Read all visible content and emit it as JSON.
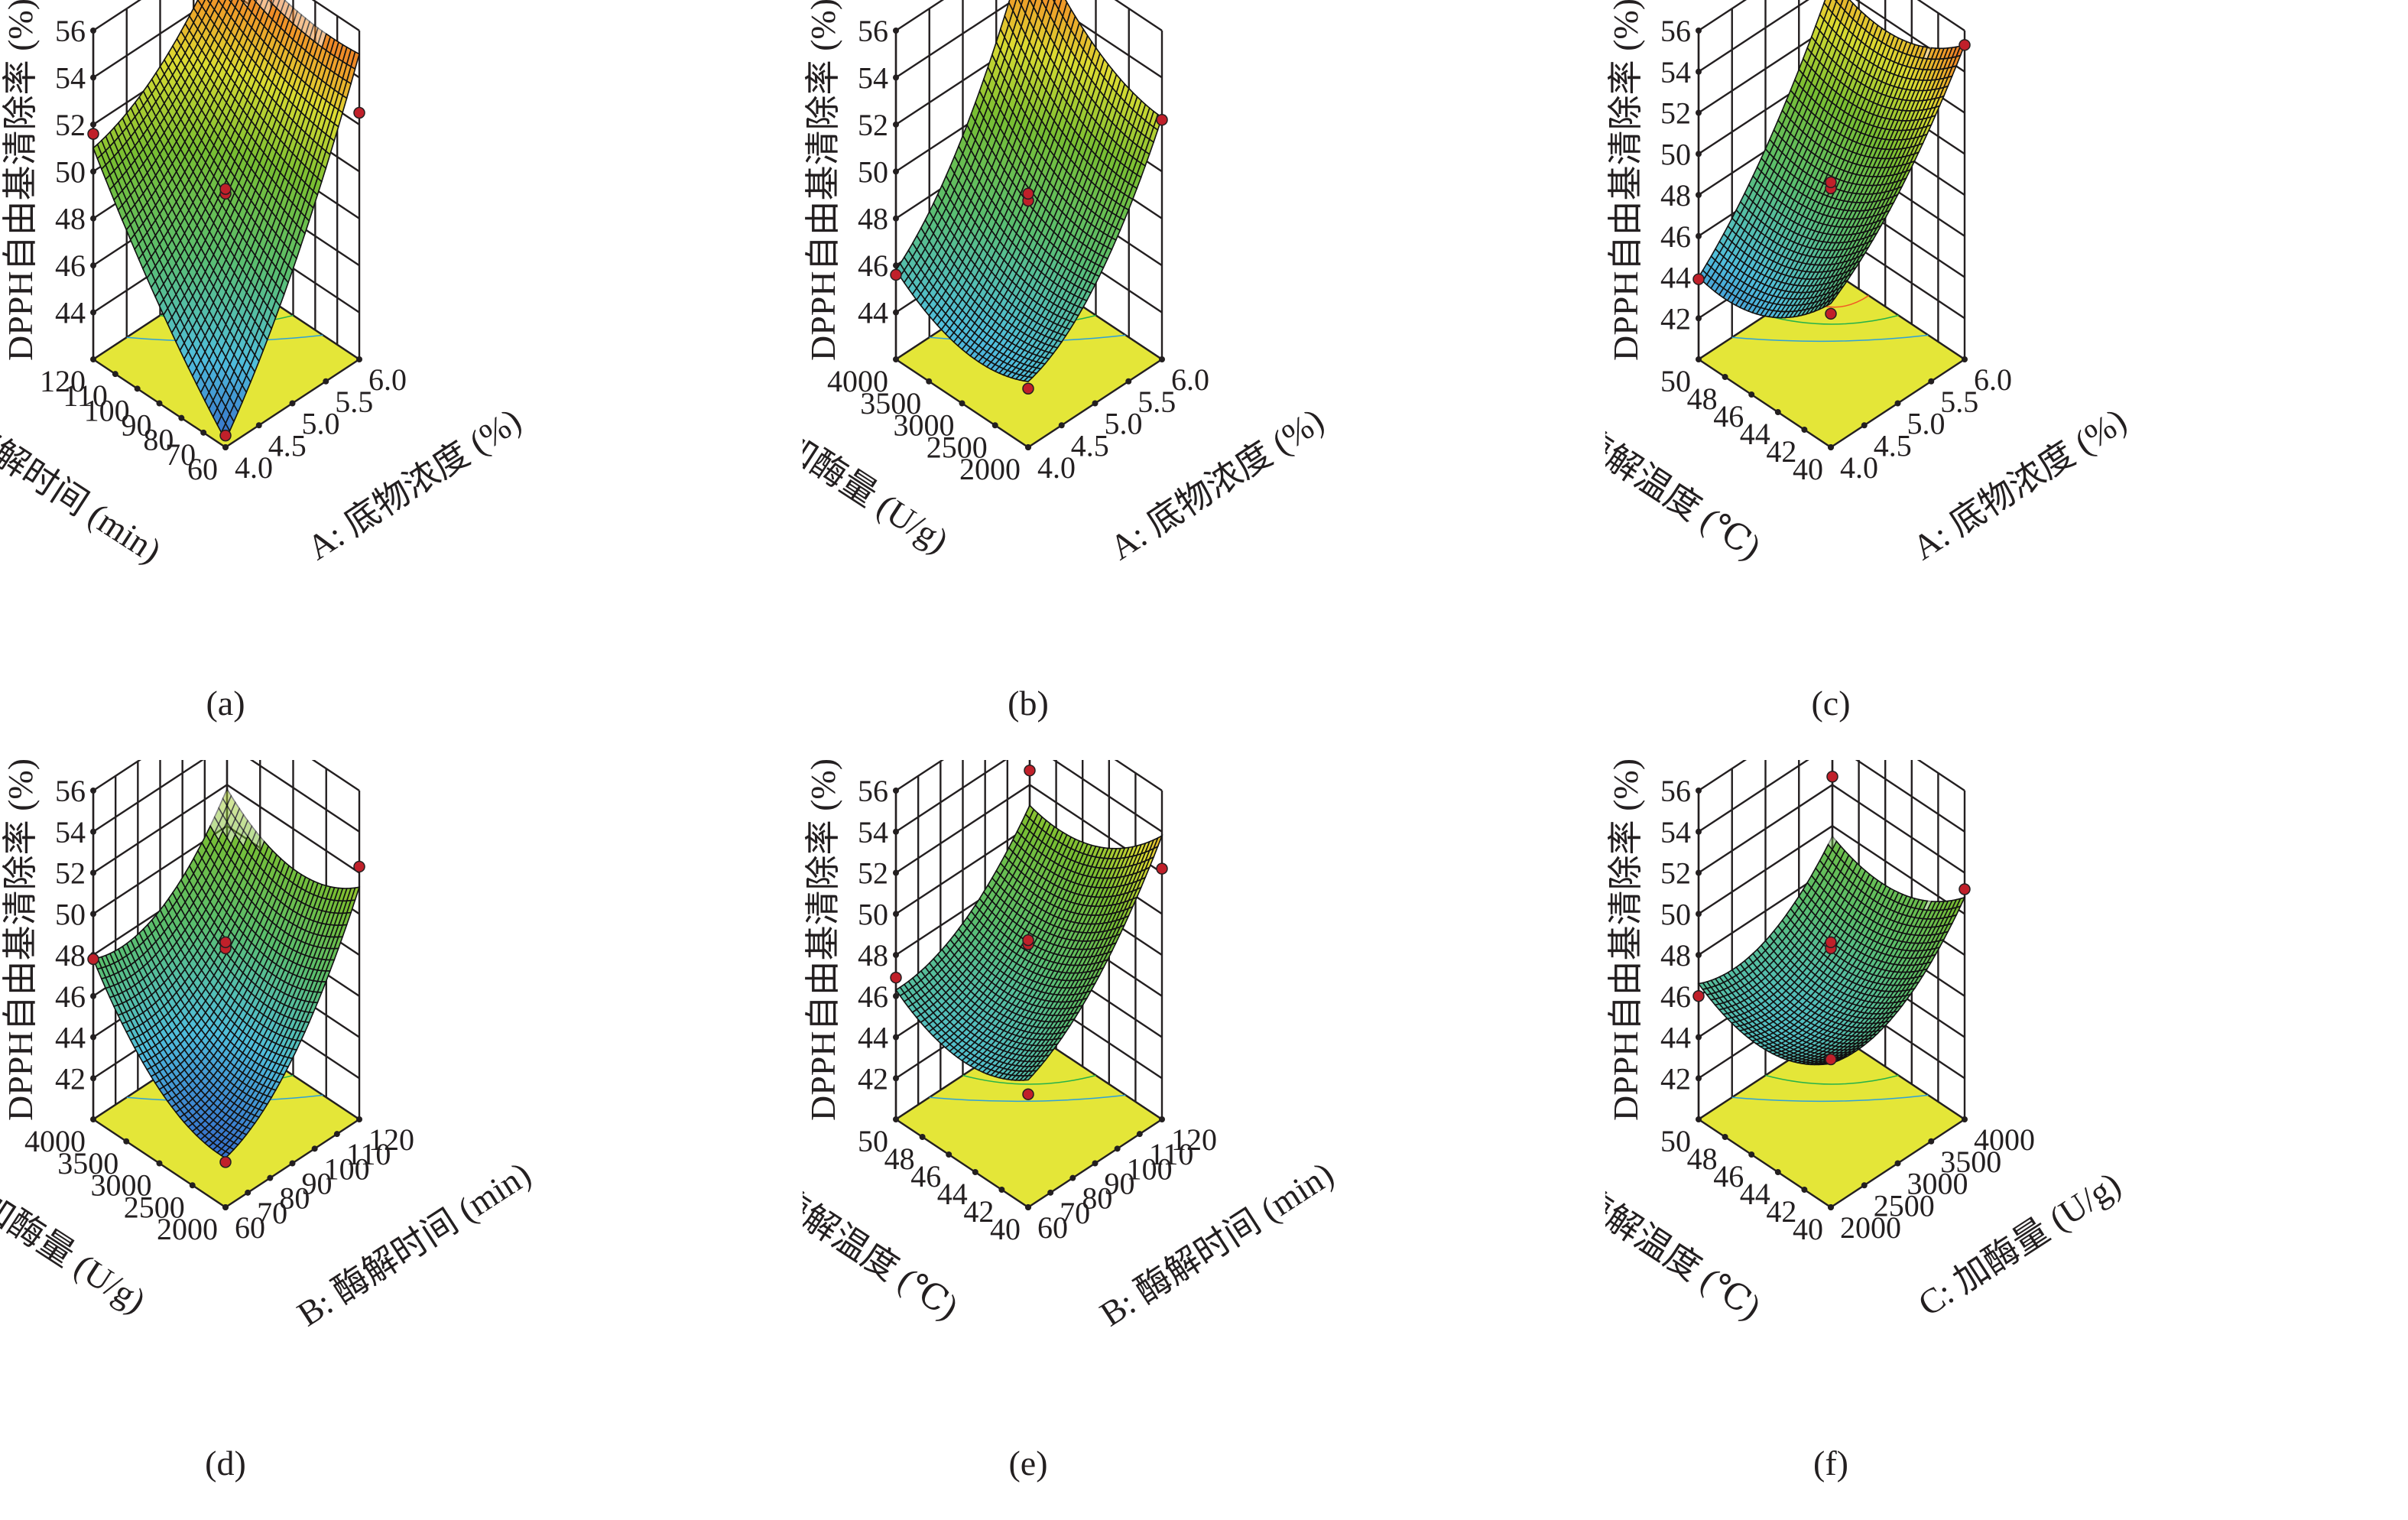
{
  "figure": {
    "panels": [
      "a",
      "b",
      "c",
      "d",
      "e",
      "f"
    ]
  },
  "chart_data": [
    {
      "id": "a",
      "type": "surface3d",
      "caption": "(a)",
      "zlabel": "DPPH自由基清除率 (%)",
      "zlim": [
        42,
        56
      ],
      "zticks": [
        "44",
        "46",
        "48",
        "50",
        "52",
        "54",
        "56"
      ],
      "zmin_tick": 44,
      "x_right": {
        "label": "A: 底物浓度 (%)",
        "range": [
          4.0,
          6.0
        ],
        "ticks": [
          "4.0",
          "4.5",
          "5.0",
          "5.5",
          "6.0"
        ]
      },
      "y_left": {
        "label": "B: 酶解时间 (min)",
        "range": [
          60,
          120
        ],
        "ticks": [
          "60",
          "70",
          "80",
          "90",
          "100",
          "110",
          "120"
        ]
      },
      "corners": {
        "front": 42.3,
        "left": 51.0,
        "right": 55.0,
        "back": 56.2
      },
      "curvature": {
        "x": -2.0,
        "y": -1.0,
        "xy": 0
      },
      "design_points": [
        51.6,
        54.0,
        52.5,
        52.8,
        53.0,
        42.5
      ],
      "contour_colors": [
        "#2ea0d8",
        "#26b24a",
        "#f15a24"
      ]
    },
    {
      "id": "b",
      "type": "surface3d",
      "caption": "(b)",
      "zlabel": "DPPH自由基清除率 (%)",
      "zlim": [
        42,
        56
      ],
      "zticks": [
        "44",
        "46",
        "48",
        "50",
        "52",
        "54",
        "56"
      ],
      "zmin_tick": 44,
      "x_right": {
        "label": "A: 底物浓度 (%)",
        "range": [
          4.0,
          6.0
        ],
        "ticks": [
          "4.0",
          "4.5",
          "5.0",
          "5.5",
          "6.0"
        ]
      },
      "y_left": {
        "label": "C: 加酶量 (U/g)",
        "range": [
          2000,
          4000
        ],
        "ticks": [
          "2000",
          "2500",
          "3000",
          "3500",
          "4000"
        ]
      },
      "corners": {
        "front": 44.8,
        "left": 45.8,
        "right": 52.3,
        "back": 56.5
      },
      "curvature": {
        "x": -3.0,
        "y": -2.0,
        "xy": 0
      },
      "design_points": [
        45.6,
        56.4,
        52.2,
        52.5,
        52.8,
        44.5
      ],
      "contour_colors": [
        "#2ea0d8",
        "#26b24a",
        "#f15a24"
      ]
    },
    {
      "id": "c",
      "type": "surface3d",
      "caption": "(c)",
      "zlabel": "DPPH自由基清除率 (%)",
      "zlim": [
        40,
        56
      ],
      "zticks": [
        "42",
        "44",
        "46",
        "48",
        "50",
        "52",
        "54",
        "56"
      ],
      "zmin_tick": 42,
      "x_right": {
        "label": "A: 底物浓度 (%)",
        "range": [
          4.0,
          6.0
        ],
        "ticks": [
          "4.0",
          "4.5",
          "5.0",
          "5.5",
          "6.0"
        ]
      },
      "y_left": {
        "label": "D: 酶解温度 (℃)",
        "range": [
          40,
          50
        ],
        "ticks": [
          "40",
          "42",
          "44",
          "46",
          "48",
          "50"
        ]
      },
      "corners": {
        "front": 47.0,
        "left": 44.0,
        "right": 55.3,
        "back": 54.2
      },
      "curvature": {
        "x": -2.0,
        "y": -2.5,
        "xy": 0
      },
      "design_points": [
        43.9,
        56.5,
        55.3,
        52.6,
        52.9,
        46.5
      ],
      "contour_colors": [
        "#2ea0d8",
        "#26b24a",
        "#f15a24"
      ]
    },
    {
      "id": "d",
      "type": "surface3d",
      "caption": "(d)",
      "zlabel": "DPPH自由基清除率 (%)",
      "zlim": [
        40,
        56
      ],
      "zticks": [
        "42",
        "44",
        "46",
        "48",
        "50",
        "52",
        "54",
        "56"
      ],
      "zmin_tick": 42,
      "x_right": {
        "label": "B: 酶解时间 (min)",
        "range": [
          60,
          120
        ],
        "ticks": [
          "60",
          "70",
          "80",
          "90",
          "100",
          "110",
          "120"
        ]
      },
      "y_left": {
        "label": "C: 加酶量 (U/g)",
        "range": [
          2000,
          4000
        ],
        "ticks": [
          "2000",
          "2500",
          "3000",
          "3500",
          "4000"
        ]
      },
      "corners": {
        "front": 42.4,
        "left": 47.8,
        "right": 51.3,
        "back": 51.8
      },
      "curvature": {
        "x": -3.5,
        "y": -3.0,
        "xy": 0
      },
      "design_points": [
        47.8,
        53.7,
        52.3,
        52.6,
        52.9,
        42.2
      ],
      "contour_colors": [
        "#2ea0d8",
        "#26b24a"
      ]
    },
    {
      "id": "e",
      "type": "surface3d",
      "caption": "(e)",
      "zlabel": "DPPH自由基清除率 (%)",
      "zlim": [
        40,
        56
      ],
      "zticks": [
        "42",
        "44",
        "46",
        "48",
        "50",
        "52",
        "54",
        "56"
      ],
      "zmin_tick": 42,
      "x_right": {
        "label": "B: 酶解时间 (min)",
        "range": [
          60,
          120
        ],
        "ticks": [
          "60",
          "70",
          "80",
          "90",
          "100",
          "110",
          "120"
        ]
      },
      "y_left": {
        "label": "D: 酶解温度 (℃)",
        "range": [
          40,
          50
        ],
        "ticks": [
          "40",
          "42",
          "44",
          "46",
          "48",
          "50"
        ]
      },
      "corners": {
        "front": 46.2,
        "left": 46.3,
        "right": 53.8,
        "back": 51.0
      },
      "curvature": {
        "x": -2.5,
        "y": -2.5,
        "xy": 0
      },
      "design_points": [
        46.9,
        52.7,
        52.2,
        52.8,
        53.0,
        45.5
      ],
      "contour_colors": [
        "#2ea0d8",
        "#26b24a"
      ]
    },
    {
      "id": "f",
      "type": "surface3d",
      "caption": "(f)",
      "zlabel": "DPPH自由基清除率 (%)",
      "zlim": [
        40,
        56
      ],
      "zticks": [
        "42",
        "44",
        "46",
        "48",
        "50",
        "52",
        "54",
        "56"
      ],
      "zmin_tick": 42,
      "x_right": {
        "label": "C: 加酶量 (U/g)",
        "range": [
          2000,
          4000
        ],
        "ticks": [
          "2000",
          "2500",
          "3000",
          "3500",
          "4000"
        ]
      },
      "y_left": {
        "label": "D: 酶解温度 (℃)",
        "range": [
          40,
          50
        ],
        "ticks": [
          "40",
          "42",
          "44",
          "46",
          "48",
          "50"
        ]
      },
      "corners": {
        "front": 47.0,
        "left": 46.6,
        "right": 50.8,
        "back": 49.5
      },
      "curvature": {
        "x": -3.0,
        "y": -2.5,
        "xy": 0
      },
      "design_points": [
        46.0,
        52.4,
        51.2,
        52.6,
        52.9,
        47.2
      ],
      "contour_colors": [
        "#2ea0d8",
        "#26b24a"
      ]
    }
  ]
}
